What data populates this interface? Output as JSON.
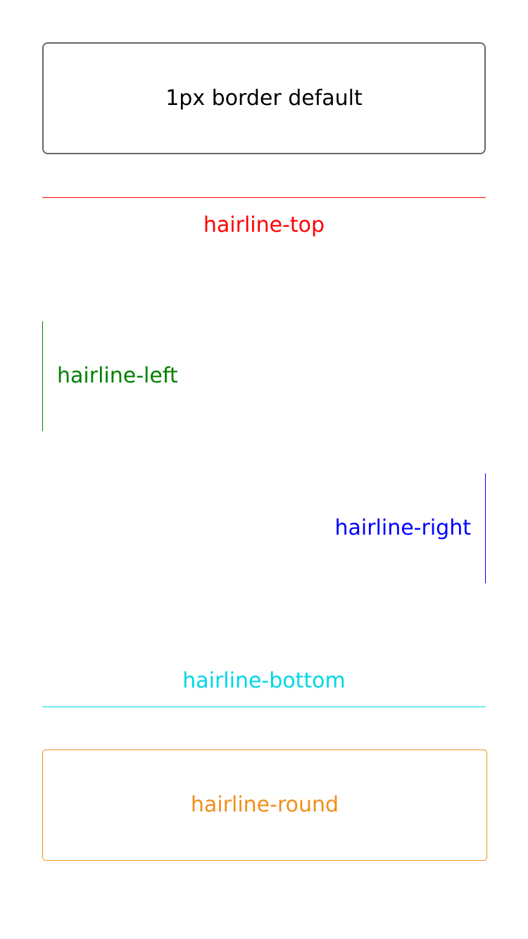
{
  "demos": {
    "border_default": {
      "label": "1px border default",
      "color": "#000000",
      "border_color": "#666666"
    },
    "hairline_top": {
      "label": "hairline-top",
      "color": "#ff0000"
    },
    "hairline_left": {
      "label": "hairline-left",
      "color": "#008000"
    },
    "hairline_right": {
      "label": "hairline-right",
      "color": "#0000ff"
    },
    "hairline_bottom": {
      "label": "hairline-bottom",
      "color": "#00d6e8"
    },
    "hairline_round": {
      "label": "hairline-round",
      "color": "#f0901a"
    }
  }
}
